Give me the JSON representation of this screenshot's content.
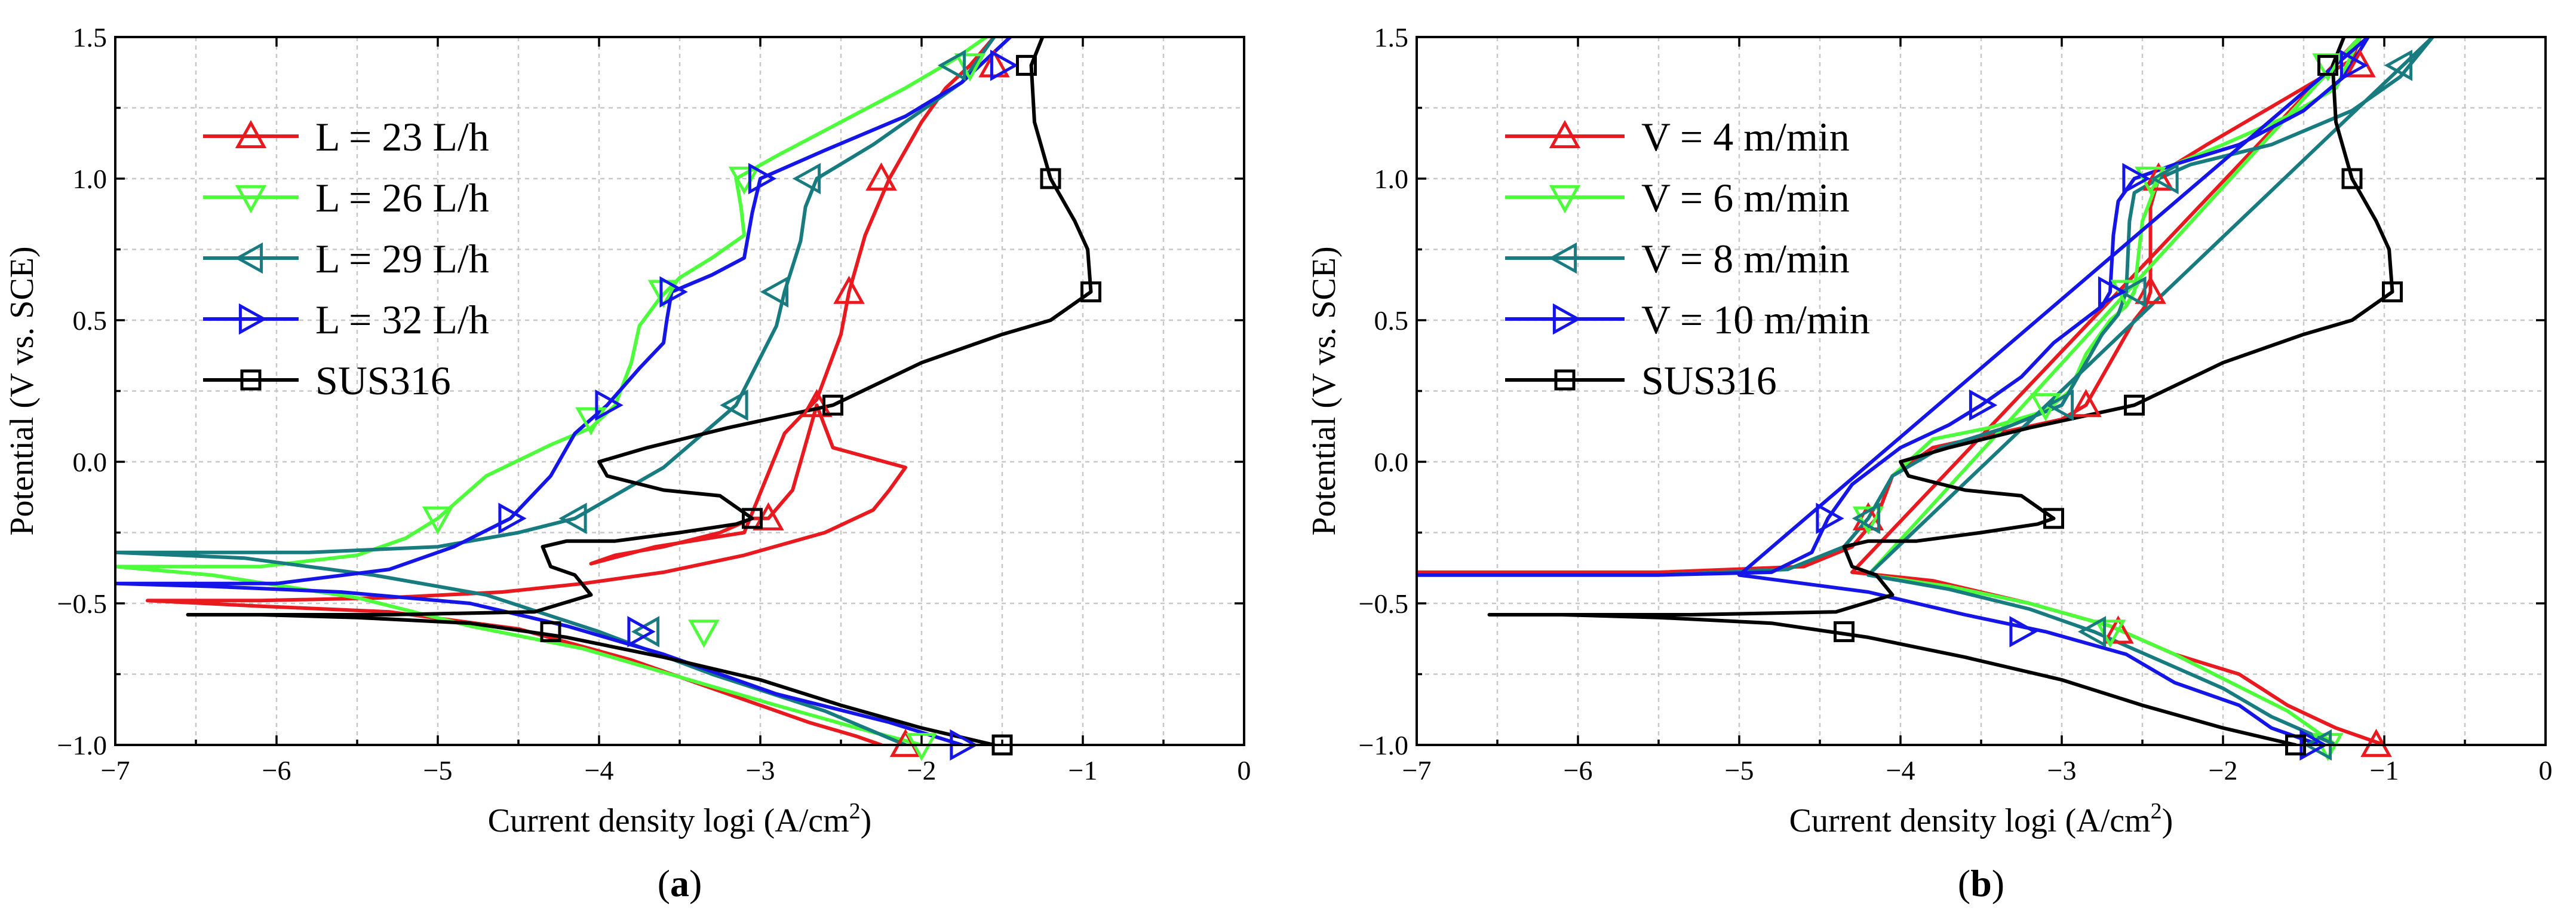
{
  "chart_data": [
    {
      "type": "line",
      "panel_label": "a",
      "xlabel": "Current density logi (A/cm",
      "xlabel_sup": "2",
      "xlabel_end": ")",
      "ylabel": "Potential (V vs. SCE)",
      "xlim": [
        -7,
        0
      ],
      "ylim": [
        -1.0,
        1.5
      ],
      "xticks": [
        -7,
        -6,
        -5,
        -4,
        -3,
        -2,
        -1,
        0
      ],
      "yticks": [
        -1.0,
        -0.5,
        0.0,
        0.5,
        1.0,
        1.5
      ],
      "xtick_labels": [
        "−7",
        "−6",
        "−5",
        "−4",
        "−3",
        "−2",
        "−1",
        "0"
      ],
      "ytick_labels": [
        "−1.0",
        "−0.5",
        "0.0",
        "0.5",
        "1.0",
        "1.5"
      ],
      "grid": true,
      "legend_position": "top-left",
      "series": [
        {
          "name": "L = 23 L/h",
          "color": "#e8191f",
          "marker": "triangle-up",
          "x": [
            -2.25,
            -2.4,
            -2.7,
            -3.2,
            -3.8,
            -4.5,
            -5.3,
            -6.1,
            -6.8,
            -6.1,
            -5.3,
            -4.6,
            -4.1,
            -3.6,
            -3.1,
            -2.6,
            -2.3,
            -2.2,
            -2.1,
            -2.55,
            -2.65,
            -2.8,
            -2.95,
            -3.05,
            -3.25,
            -3.6,
            -3.9,
            -4.05,
            -3.65,
            -3.1,
            -2.85,
            -2.65,
            -2.5,
            -2.45,
            -2.35,
            -2.2,
            -2.0,
            -1.85,
            -1.7,
            -1.55
          ],
          "y": [
            -1.0,
            -0.97,
            -0.92,
            -0.82,
            -0.7,
            -0.59,
            -0.53,
            -0.51,
            -0.49,
            -0.49,
            -0.48,
            -0.46,
            -0.43,
            -0.39,
            -0.33,
            -0.25,
            -0.17,
            -0.1,
            -0.02,
            0.05,
            0.2,
            -0.1,
            -0.2,
            -0.2,
            -0.25,
            -0.3,
            -0.33,
            -0.36,
            -0.3,
            -0.25,
            0.1,
            0.22,
            0.45,
            0.6,
            0.8,
            1.0,
            1.2,
            1.32,
            1.4,
            1.5
          ],
          "marker_x": [
            -2.95,
            -2.65,
            -2.45,
            -2.25,
            -1.55,
            -2.1
          ],
          "marker_y": [
            -0.2,
            0.2,
            0.6,
            1.0,
            1.4,
            -1.0
          ]
        },
        {
          "name": "L = 26 L/h",
          "color": "#4cff3a",
          "marker": "triangle-down",
          "x": [
            -2.0,
            -2.4,
            -2.9,
            -3.5,
            -4.1,
            -4.8,
            -5.5,
            -6.4,
            -7.0,
            -6.1,
            -5.5,
            -5.2,
            -5.0,
            -4.7,
            -4.3,
            -4.05,
            -3.9,
            -3.8,
            -3.75,
            -3.62,
            -3.5,
            -3.3,
            -3.1,
            -3.12,
            -3.15,
            -2.9,
            -2.5,
            -2.1,
            -1.8,
            -1.6
          ],
          "y": [
            -1.0,
            -0.94,
            -0.86,
            -0.76,
            -0.66,
            -0.58,
            -0.48,
            -0.4,
            -0.37,
            -0.37,
            -0.33,
            -0.27,
            -0.2,
            -0.05,
            0.06,
            0.12,
            0.2,
            0.35,
            0.48,
            0.58,
            0.65,
            0.72,
            0.8,
            0.9,
            1.0,
            1.08,
            1.2,
            1.32,
            1.42,
            1.5
          ],
          "marker_x": [
            -5.0,
            -4.05,
            -3.6,
            -3.1,
            -1.7,
            -2.0,
            -3.35
          ],
          "marker_y": [
            -0.2,
            0.15,
            0.6,
            1.0,
            1.4,
            -1.0,
            -0.6
          ]
        },
        {
          "name": "L = 29 L/h",
          "color": "#177b80",
          "marker": "triangle-left",
          "x": [
            -2.1,
            -2.6,
            -3.3,
            -4.0,
            -4.7,
            -5.4,
            -6.2,
            -7.0,
            -5.8,
            -5.0,
            -4.5,
            -4.15,
            -3.6,
            -3.15,
            -2.9,
            -2.85,
            -2.75,
            -2.72,
            -2.65,
            -2.3,
            -2.0,
            -1.75,
            -1.55
          ],
          "y": [
            -1.0,
            -0.88,
            -0.75,
            -0.6,
            -0.47,
            -0.4,
            -0.34,
            -0.32,
            -0.32,
            -0.3,
            -0.25,
            -0.2,
            -0.02,
            0.2,
            0.48,
            0.6,
            0.78,
            0.9,
            1.0,
            1.12,
            1.24,
            1.34,
            1.5
          ],
          "marker_x": [
            -4.15,
            -3.15,
            -2.9,
            -2.7,
            -1.8,
            -3.7
          ],
          "marker_y": [
            -0.2,
            0.2,
            0.6,
            1.0,
            1.4,
            -0.6
          ]
        },
        {
          "name": "L = 32 L/h",
          "color": "#1515e8",
          "marker": "triangle-right",
          "x": [
            -1.75,
            -2.2,
            -2.9,
            -3.6,
            -4.2,
            -4.8,
            -5.6,
            -6.4,
            -7.0,
            -6.0,
            -5.3,
            -4.9,
            -4.55,
            -4.3,
            -4.15,
            -3.95,
            -3.75,
            -3.6,
            -3.58,
            -3.55,
            -3.3,
            -3.1,
            -3.05,
            -3.0,
            -2.6,
            -2.1,
            -1.75,
            -1.45
          ],
          "y": [
            -1.0,
            -0.92,
            -0.82,
            -0.68,
            -0.58,
            -0.5,
            -0.46,
            -0.44,
            -0.43,
            -0.43,
            -0.38,
            -0.3,
            -0.2,
            -0.05,
            0.1,
            0.2,
            0.33,
            0.42,
            0.5,
            0.6,
            0.66,
            0.72,
            0.88,
            1.0,
            1.1,
            1.22,
            1.34,
            1.5
          ],
          "marker_x": [
            -4.55,
            -3.95,
            -3.55,
            -3.0,
            -1.5,
            -1.75,
            -3.75
          ],
          "marker_y": [
            -0.2,
            0.2,
            0.6,
            1.0,
            1.4,
            -1.0,
            -0.6
          ]
        },
        {
          "name": "SUS316",
          "color": "#000000",
          "marker": "square",
          "x": [
            -1.55,
            -2.0,
            -2.5,
            -3.0,
            -3.6,
            -4.2,
            -4.8,
            -5.5,
            -6.1,
            -6.55,
            -5.3,
            -4.4,
            -4.05,
            -4.15,
            -4.3,
            -4.35,
            -4.2,
            -3.9,
            -3.5,
            -3.15,
            -3.05,
            -3.25,
            -3.6,
            -3.95,
            -4.0,
            -3.7,
            -3.2,
            -2.55,
            -2.0,
            -1.5,
            -1.2,
            -0.95,
            -0.97,
            -1.05,
            -1.15,
            -1.2,
            -1.25,
            -1.3,
            -1.32,
            -1.25
          ],
          "y": [
            -1.0,
            -0.94,
            -0.86,
            -0.77,
            -0.69,
            -0.62,
            -0.57,
            -0.55,
            -0.54,
            -0.54,
            -0.54,
            -0.53,
            -0.47,
            -0.4,
            -0.37,
            -0.3,
            -0.28,
            -0.28,
            -0.25,
            -0.22,
            -0.2,
            -0.12,
            -0.1,
            -0.05,
            0.0,
            0.05,
            0.12,
            0.2,
            0.35,
            0.45,
            0.5,
            0.6,
            0.75,
            0.85,
            0.95,
            1.0,
            1.1,
            1.2,
            1.4,
            1.5
          ],
          "marker_x": [
            -1.5,
            -4.3,
            -3.05,
            -2.55,
            -0.95,
            -1.2,
            -1.35
          ],
          "marker_y": [
            -1.0,
            -0.6,
            -0.2,
            0.2,
            0.6,
            1.0,
            1.4
          ]
        }
      ]
    },
    {
      "type": "line",
      "panel_label": "b",
      "xlabel": "Current density logi (A/cm",
      "xlabel_sup": "2",
      "xlabel_end": ")",
      "ylabel": "Potential (V vs. SCE)",
      "xlim": [
        -7,
        0
      ],
      "ylim": [
        -1.0,
        1.5
      ],
      "xticks": [
        -7,
        -6,
        -5,
        -4,
        -3,
        -2,
        -1,
        0
      ],
      "yticks": [
        -1.0,
        -0.5,
        0.0,
        0.5,
        1.0,
        1.5
      ],
      "xtick_labels": [
        "−7",
        "−6",
        "−5",
        "−4",
        "−3",
        "−2",
        "−1",
        "0"
      ],
      "ytick_labels": [
        "−1.0",
        "−0.5",
        "0.0",
        "0.5",
        "1.0",
        "1.5"
      ],
      "grid": true,
      "legend_position": "top-left",
      "series": [
        {
          "name": "V = 4 m/min",
          "color": "#e8191f",
          "marker": "triangle-up",
          "x": [
            -7.0,
            -5.5,
            -4.6,
            -4.3,
            -4.15,
            -4.05,
            -3.8,
            -3.4,
            -3.0,
            -2.85,
            -2.65,
            -2.55,
            -2.48,
            -2.45,
            -2.45,
            -2.4,
            -2.3,
            -2.1,
            -1.8,
            -1.5,
            -1.2,
            -1.15,
            -4.3,
            -3.8,
            -3.2,
            -2.7,
            -2.3,
            -1.9,
            -1.6,
            -1.3,
            -1.0
          ],
          "y": [
            -0.39,
            -0.39,
            -0.37,
            -0.3,
            -0.2,
            -0.05,
            0.05,
            0.1,
            0.15,
            0.2,
            0.4,
            0.5,
            0.55,
            0.6,
            0.9,
            1.0,
            1.05,
            1.12,
            1.22,
            1.32,
            1.42,
            1.5,
            -0.39,
            -0.42,
            -0.5,
            -0.58,
            -0.68,
            -0.75,
            -0.86,
            -0.94,
            -1.0
          ],
          "marker_x": [
            -4.2,
            -2.85,
            -2.45,
            -2.4,
            -1.15,
            -2.65,
            -1.05
          ],
          "marker_y": [
            -0.2,
            0.2,
            0.6,
            1.0,
            1.4,
            -0.6,
            -1.0
          ]
        },
        {
          "name": "V = 6 m/min",
          "color": "#4cff3a",
          "marker": "triangle-down",
          "x": [
            -7.0,
            -5.5,
            -4.7,
            -4.35,
            -4.2,
            -4.05,
            -3.8,
            -3.45,
            -3.1,
            -2.95,
            -2.85,
            -2.7,
            -2.6,
            -2.55,
            -2.5,
            -2.4,
            -2.3,
            -2.0,
            -1.6,
            -1.3,
            -1.15,
            -4.2,
            -3.7,
            -3.2,
            -2.7,
            -2.3,
            -1.95,
            -1.6,
            -1.3
          ],
          "y": [
            -0.4,
            -0.4,
            -0.38,
            -0.3,
            -0.2,
            -0.05,
            0.08,
            0.12,
            0.18,
            0.25,
            0.38,
            0.5,
            0.55,
            0.6,
            0.85,
            1.0,
            1.05,
            1.12,
            1.22,
            1.32,
            1.5,
            -0.4,
            -0.44,
            -0.5,
            -0.58,
            -0.68,
            -0.78,
            -0.88,
            -1.0
          ],
          "marker_x": [
            -4.2,
            -3.1,
            -2.6,
            -2.45,
            -1.35,
            -2.7,
            -1.35
          ],
          "marker_y": [
            -0.2,
            0.2,
            0.6,
            1.0,
            1.4,
            -0.6,
            -1.0
          ]
        },
        {
          "name": "V = 8 m/min",
          "color": "#177b80",
          "marker": "triangle-left",
          "x": [
            -7.0,
            -5.5,
            -4.7,
            -4.35,
            -4.2,
            -4.05,
            -3.75,
            -3.35,
            -3.0,
            -2.9,
            -2.75,
            -2.65,
            -2.6,
            -2.58,
            -2.55,
            -2.4,
            -2.2,
            -1.7,
            -1.2,
            -0.9,
            -0.7,
            -4.2,
            -3.7,
            -3.2,
            -2.8,
            -2.4,
            -2.0,
            -1.7,
            -1.3
          ],
          "y": [
            -0.4,
            -0.4,
            -0.38,
            -0.3,
            -0.2,
            -0.05,
            0.05,
            0.12,
            0.2,
            0.3,
            0.45,
            0.52,
            0.6,
            0.85,
            0.95,
            1.0,
            1.05,
            1.12,
            1.24,
            1.36,
            1.5,
            -0.4,
            -0.45,
            -0.52,
            -0.6,
            -0.7,
            -0.8,
            -0.9,
            -1.0
          ],
          "marker_x": [
            -4.2,
            -3.0,
            -2.55,
            -2.35,
            -0.9,
            -2.8,
            -1.4
          ],
          "marker_y": [
            -0.2,
            0.2,
            0.6,
            1.0,
            1.4,
            -0.6,
            -1.0
          ]
        },
        {
          "name": "V = 10 m/min",
          "color": "#1515e8",
          "marker": "triangle-right",
          "x": [
            -7.0,
            -5.5,
            -4.8,
            -4.55,
            -4.45,
            -4.3,
            -4.0,
            -3.7,
            -3.5,
            -3.25,
            -3.05,
            -2.75,
            -2.7,
            -2.68,
            -2.65,
            -2.55,
            -2.3,
            -1.9,
            -1.5,
            -1.25,
            -1.1,
            -5.0,
            -4.2,
            -3.6,
            -3.1,
            -2.6,
            -2.3,
            -1.9,
            -1.7,
            -1.4
          ],
          "y": [
            -0.4,
            -0.4,
            -0.39,
            -0.32,
            -0.2,
            -0.08,
            0.05,
            0.13,
            0.2,
            0.3,
            0.42,
            0.55,
            0.6,
            0.8,
            0.92,
            1.0,
            1.05,
            1.12,
            1.24,
            1.36,
            1.5,
            -0.4,
            -0.46,
            -0.54,
            -0.6,
            -0.68,
            -0.78,
            -0.86,
            -0.94,
            -1.0
          ],
          "marker_x": [
            -4.45,
            -3.5,
            -2.7,
            -2.55,
            -1.2,
            -3.25,
            -1.45
          ],
          "marker_y": [
            -0.2,
            0.2,
            0.6,
            1.0,
            1.4,
            -0.6,
            -1.0
          ]
        },
        {
          "name": "SUS316",
          "color": "#000000",
          "marker": "square",
          "x": [
            -1.55,
            -2.0,
            -2.5,
            -3.0,
            -3.6,
            -4.2,
            -4.8,
            -5.5,
            -6.1,
            -6.55,
            -5.3,
            -4.4,
            -4.05,
            -4.15,
            -4.3,
            -4.35,
            -4.2,
            -3.9,
            -3.5,
            -3.15,
            -3.05,
            -3.25,
            -3.6,
            -3.95,
            -4.0,
            -3.7,
            -3.2,
            -2.55,
            -2.0,
            -1.5,
            -1.2,
            -0.95,
            -0.97,
            -1.05,
            -1.15,
            -1.2,
            -1.25,
            -1.3,
            -1.32,
            -1.25
          ],
          "y": [
            -1.0,
            -0.94,
            -0.86,
            -0.77,
            -0.69,
            -0.62,
            -0.57,
            -0.55,
            -0.54,
            -0.54,
            -0.54,
            -0.53,
            -0.47,
            -0.4,
            -0.37,
            -0.3,
            -0.28,
            -0.28,
            -0.25,
            -0.22,
            -0.2,
            -0.12,
            -0.1,
            -0.05,
            0.0,
            0.05,
            0.12,
            0.2,
            0.35,
            0.45,
            0.5,
            0.6,
            0.75,
            0.85,
            0.95,
            1.0,
            1.1,
            1.2,
            1.4,
            1.5
          ],
          "marker_x": [
            -1.55,
            -4.35,
            -3.05,
            -2.55,
            -0.95,
            -1.2,
            -1.35
          ],
          "marker_y": [
            -1.0,
            -0.6,
            -0.2,
            0.2,
            0.6,
            1.0,
            1.4
          ]
        }
      ]
    }
  ]
}
